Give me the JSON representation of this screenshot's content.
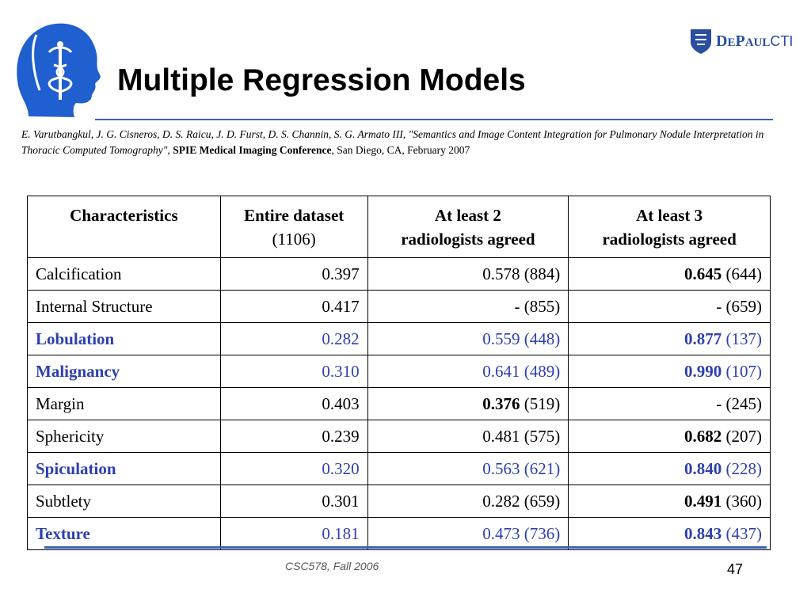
{
  "slide": {
    "title": "Multiple Regression Models",
    "brand": {
      "name_part1": "D",
      "name_part2": "E",
      "name_part3": "P",
      "name_part4": "AUL",
      "name_part5": "CTI"
    },
    "citation": {
      "authors_title": "E. Varutbangkul, J. G. Cisneros, D. S. Raicu, J. D. Furst, D. S. Channin, S. G. Armato III, \"Semantics and Image Content Integration for Pulmonary Nodule Interpretation in Thoracic Computed Tomography\",",
      "conference": "SPIE Medical Imaging Conference",
      "location_date": ", San Diego, CA, February 2007"
    },
    "footer": {
      "course": "CSC578, Fall 2006",
      "page": "47"
    },
    "colors": {
      "accent_blue": "#2d3fb0",
      "rule_blue": "#3a5fc0",
      "brand_blue": "#2a4ea0"
    }
  },
  "table": {
    "headers": [
      {
        "line1": "Characteristics",
        "line2": ""
      },
      {
        "line1": "Entire dataset",
        "line2": "(1106)"
      },
      {
        "line1": "At least 2",
        "line2": "radiologists agreed"
      },
      {
        "line1": "At least 3",
        "line2": "radiologists agreed"
      }
    ],
    "rows": [
      {
        "name": "Calcification",
        "highlight": false,
        "entire": "0.397",
        "two_val": "",
        "two_n": "0.578 (884)",
        "two_bold": false,
        "three_val": "0.645",
        "three_n": " (644)",
        "three_bold": true
      },
      {
        "name": "Internal Structure",
        "highlight": false,
        "entire": "0.417",
        "two_val": "",
        "two_n": "- (855)",
        "two_bold": false,
        "three_val": "",
        "three_n": "- (659)",
        "three_bold": false
      },
      {
        "name": "Lobulation",
        "highlight": true,
        "entire": "0.282",
        "two_val": "",
        "two_n": "0.559 (448)",
        "two_bold": false,
        "three_val": "0.877",
        "three_n": " (137)",
        "three_bold": true
      },
      {
        "name": "Malignancy",
        "highlight": true,
        "entire": "0.310",
        "two_val": "",
        "two_n": "0.641 (489)",
        "two_bold": false,
        "three_val": "0.990",
        "three_n": " (107)",
        "three_bold": true
      },
      {
        "name": "Margin",
        "highlight": false,
        "entire": "0.403",
        "two_val": "0.376",
        "two_n": " (519)",
        "two_bold": true,
        "three_val": "",
        "three_n": "- (245)",
        "three_bold": false
      },
      {
        "name": "Sphericity",
        "highlight": false,
        "entire": "0.239",
        "two_val": "",
        "two_n": "0.481 (575)",
        "two_bold": false,
        "three_val": "0.682",
        "three_n": " (207)",
        "three_bold": true
      },
      {
        "name": "Spiculation",
        "highlight": true,
        "entire": "0.320",
        "two_val": "",
        "two_n": "0.563 (621)",
        "two_bold": false,
        "three_val": "0.840",
        "three_n": " (228)",
        "three_bold": true
      },
      {
        "name": "Subtlety",
        "highlight": false,
        "entire": "0.301",
        "two_val": "",
        "two_n": "0.282 (659)",
        "two_bold": false,
        "three_val": "0.491",
        "three_n": " (360)",
        "three_bold": true
      },
      {
        "name": "Texture",
        "highlight": true,
        "entire": "0.181",
        "two_val": "",
        "two_n": "0.473 (736)",
        "two_bold": false,
        "three_val": "0.843",
        "three_n": " (437)",
        "three_bold": true
      }
    ]
  }
}
